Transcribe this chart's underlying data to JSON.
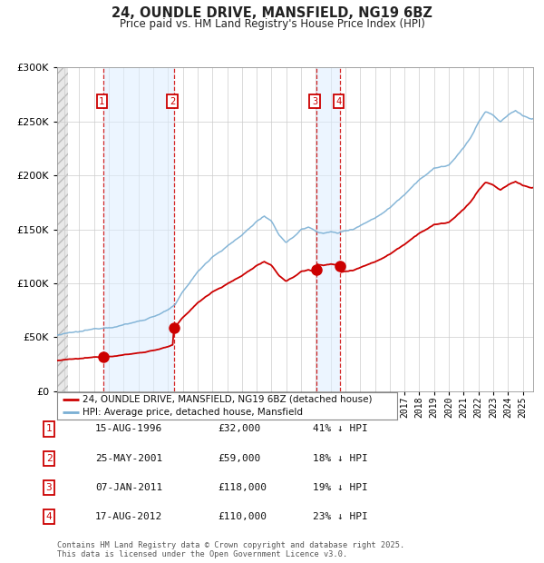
{
  "title": "24, OUNDLE DRIVE, MANSFIELD, NG19 6BZ",
  "subtitle": "Price paid vs. HM Land Registry's House Price Index (HPI)",
  "purchases": [
    {
      "date_year": 1996.62,
      "price": 32000,
      "label": "1"
    },
    {
      "date_year": 2001.4,
      "price": 59000,
      "label": "2"
    },
    {
      "date_year": 2011.03,
      "price": 118000,
      "label": "3"
    },
    {
      "date_year": 2012.63,
      "price": 110000,
      "label": "4"
    }
  ],
  "legend_entries": [
    {
      "label": "24, OUNDLE DRIVE, MANSFIELD, NG19 6BZ (detached house)",
      "color": "#cc0000"
    },
    {
      "label": "HPI: Average price, detached house, Mansfield",
      "color": "#7aafd4"
    }
  ],
  "table_rows": [
    {
      "num": "1",
      "date": "15-AUG-1996",
      "price": "£32,000",
      "pct": "41% ↓ HPI"
    },
    {
      "num": "2",
      "date": "25-MAY-2001",
      "price": "£59,000",
      "pct": "18% ↓ HPI"
    },
    {
      "num": "3",
      "date": "07-JAN-2011",
      "price": "£118,000",
      "pct": "19% ↓ HPI"
    },
    {
      "num": "4",
      "date": "17-AUG-2012",
      "price": "£110,000",
      "pct": "23% ↓ HPI"
    }
  ],
  "footnote": "Contains HM Land Registry data © Crown copyright and database right 2025.\nThis data is licensed under the Open Government Licence v3.0.",
  "ylim": [
    0,
    300000
  ],
  "yticks": [
    0,
    50000,
    100000,
    150000,
    200000,
    250000,
    300000
  ],
  "xlim_start": 1993.5,
  "xlim_end": 2025.7,
  "background_color": "#ffffff",
  "plot_bg_color": "#ffffff",
  "grid_color": "#cccccc",
  "shade_color": "#ddeeff",
  "red_line_color": "#cc0000",
  "blue_line_color": "#7aafd4",
  "hpi_anchors": [
    [
      1993.5,
      52000
    ],
    [
      1994.0,
      53000
    ],
    [
      1995.0,
      54000
    ],
    [
      1996.0,
      56000
    ],
    [
      1997.0,
      59000
    ],
    [
      1998.0,
      62000
    ],
    [
      1999.0,
      65000
    ],
    [
      2000.0,
      70000
    ],
    [
      2001.0,
      76000
    ],
    [
      2001.5,
      80000
    ],
    [
      2002.0,
      92000
    ],
    [
      2003.0,
      110000
    ],
    [
      2004.0,
      125000
    ],
    [
      2005.0,
      135000
    ],
    [
      2006.0,
      145000
    ],
    [
      2007.0,
      158000
    ],
    [
      2007.5,
      163000
    ],
    [
      2008.0,
      157000
    ],
    [
      2008.5,
      145000
    ],
    [
      2009.0,
      138000
    ],
    [
      2009.5,
      143000
    ],
    [
      2010.0,
      150000
    ],
    [
      2010.5,
      152000
    ],
    [
      2011.0,
      149000
    ],
    [
      2011.5,
      147000
    ],
    [
      2012.0,
      148000
    ],
    [
      2012.5,
      147000
    ],
    [
      2013.0,
      149000
    ],
    [
      2013.5,
      151000
    ],
    [
      2014.0,
      155000
    ],
    [
      2015.0,
      162000
    ],
    [
      2016.0,
      172000
    ],
    [
      2017.0,
      185000
    ],
    [
      2018.0,
      200000
    ],
    [
      2019.0,
      210000
    ],
    [
      2020.0,
      213000
    ],
    [
      2021.0,
      228000
    ],
    [
      2021.5,
      238000
    ],
    [
      2022.0,
      252000
    ],
    [
      2022.5,
      262000
    ],
    [
      2023.0,
      258000
    ],
    [
      2023.5,
      252000
    ],
    [
      2024.0,
      258000
    ],
    [
      2024.5,
      262000
    ],
    [
      2025.0,
      258000
    ],
    [
      2025.5,
      255000
    ]
  ]
}
